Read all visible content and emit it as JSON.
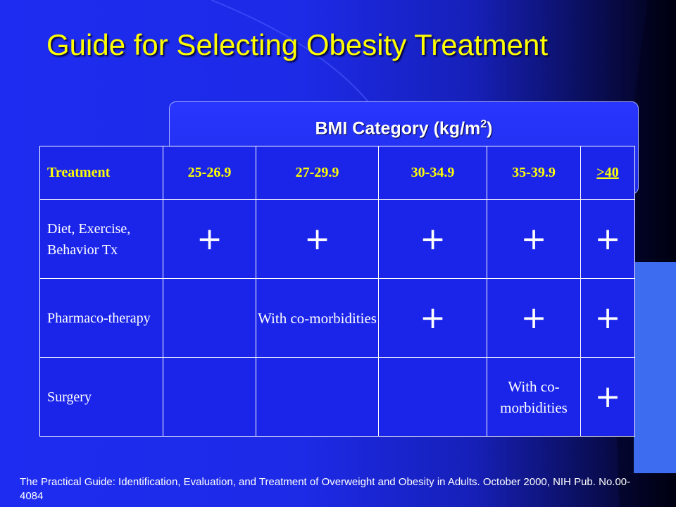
{
  "slide": {
    "title": "Guide for Selecting Obesity Treatment",
    "bmi_header_prefix": "BMI Category (kg/m",
    "bmi_header_superscript": "2",
    "bmi_header_suffix": ")",
    "colors": {
      "background": "#1a26e8",
      "title": "#ffff00",
      "header_text": "#ffff00",
      "body_text": "#ffffff"
    }
  },
  "table": {
    "headers": [
      "Treatment",
      "25-26.9",
      "27-29.9",
      "30-34.9",
      "35-39.9",
      ">40"
    ],
    "rows": [
      {
        "label": "Diet, Exercise, Behavior Tx",
        "cells": [
          "+",
          "+",
          "+",
          "+",
          "+"
        ]
      },
      {
        "label": "Pharmaco-therapy",
        "cells": [
          "",
          "With co-morbidities",
          "+",
          "+",
          "+"
        ]
      },
      {
        "label": "Surgery",
        "cells": [
          "",
          "",
          "",
          "With co-morbidities",
          "+"
        ]
      }
    ]
  },
  "footnote": "The Practical Guide: Identification, Evaluation, and Treatment of Overweight and Obesity in Adults. October 2000, NIH Pub. No.00-4084"
}
